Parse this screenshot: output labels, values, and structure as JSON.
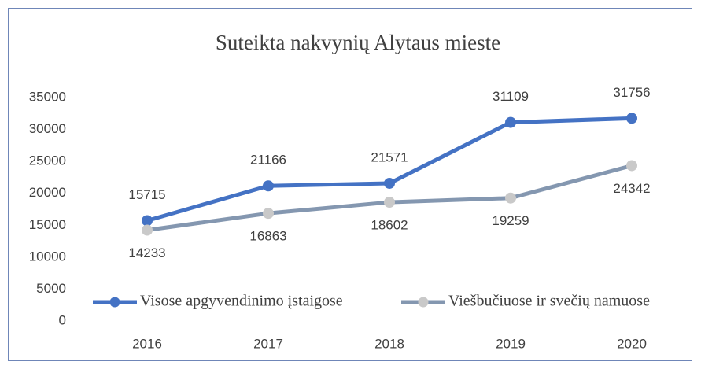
{
  "chart_data": {
    "type": "line",
    "title": "Suteikta nakvynių Alytaus mieste",
    "categories": [
      "2016",
      "2017",
      "2018",
      "2019",
      "2020"
    ],
    "series": [
      {
        "name": "Visose apgyvendinimo įstaigose",
        "color": "#4472c4",
        "marker_color": "#4472c4",
        "values": [
          15715,
          21166,
          21571,
          31109,
          31756
        ]
      },
      {
        "name": "Viešbučiuose ir svečių namuose",
        "color": "#8497b0",
        "marker_color": "#c9c9c9",
        "values": [
          14233,
          16863,
          18602,
          19259,
          24342
        ]
      }
    ],
    "ylim": [
      0,
      35000
    ],
    "yticks": [
      0,
      5000,
      10000,
      15000,
      20000,
      25000,
      30000,
      35000
    ],
    "grid": false,
    "legend": "bottom"
  }
}
